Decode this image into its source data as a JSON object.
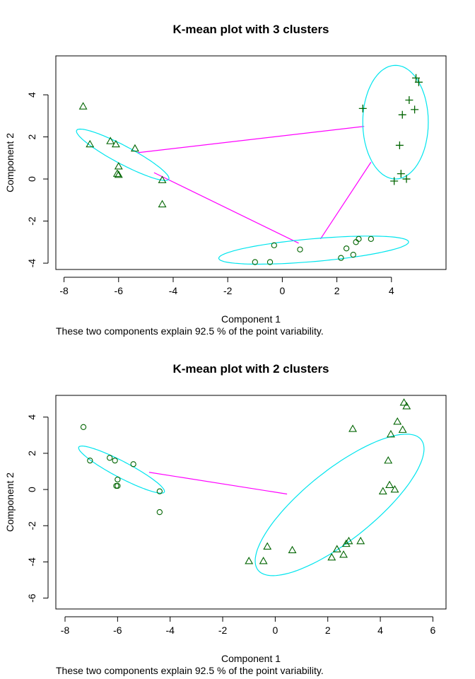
{
  "chart_data": [
    {
      "type": "scatter",
      "title": "K-mean plot with 3 clusters",
      "xlabel": "Component 1",
      "ylabel": "Component 2",
      "caption": "These two components explain 92.5 % of the point variability.",
      "xlim": [
        -8.3,
        6.0
      ],
      "ylim": [
        -4.3,
        5.85
      ],
      "xticks": [
        -8,
        -6,
        -4,
        -2,
        0,
        2,
        4
      ],
      "yticks": [
        -4,
        -2,
        0,
        2,
        4
      ],
      "grid": false,
      "colors": {
        "points": "#006400",
        "ellipse": "#00e5ee",
        "links": "#ff00ff"
      },
      "clusters": [
        {
          "marker": "triangle",
          "points": [
            [
              -7.3,
              3.45
            ],
            [
              -7.05,
              1.65
            ],
            [
              -6.3,
              1.8
            ],
            [
              -6.1,
              1.65
            ],
            [
              -6.0,
              0.6
            ],
            [
              -6.05,
              0.25
            ],
            [
              -6.0,
              0.2
            ],
            [
              -5.4,
              1.45
            ],
            [
              -4.4,
              -0.05
            ],
            [
              -4.4,
              -1.2
            ]
          ],
          "ellipse": {
            "cx": -5.85,
            "cy": 1.15,
            "rx": 2.05,
            "ry": 0.4,
            "angle": -35
          }
        },
        {
          "marker": "circle",
          "points": [
            [
              -1.0,
              -3.95
            ],
            [
              -0.45,
              -3.95
            ],
            [
              -0.3,
              -3.15
            ],
            [
              0.65,
              -3.35
            ],
            [
              2.15,
              -3.75
            ],
            [
              2.35,
              -3.3
            ],
            [
              2.6,
              -3.6
            ],
            [
              2.7,
              -3.0
            ],
            [
              2.8,
              -2.85
            ],
            [
              3.25,
              -2.85
            ]
          ],
          "ellipse": {
            "cx": 1.15,
            "cy": -3.38,
            "rx": 3.5,
            "ry": 0.54,
            "angle": 6.5
          }
        },
        {
          "marker": "plus",
          "points": [
            [
              2.95,
              3.35
            ],
            [
              4.1,
              -0.1
            ],
            [
              4.3,
              1.6
            ],
            [
              4.35,
              0.25
            ],
            [
              4.4,
              3.05
            ],
            [
              4.55,
              0.0
            ],
            [
              4.65,
              3.75
            ],
            [
              4.85,
              3.3
            ],
            [
              4.9,
              4.8
            ],
            [
              5.0,
              4.6
            ]
          ],
          "ellipse": {
            "cx": 4.15,
            "cy": 2.7,
            "rx": 1.2,
            "ry": 2.7,
            "angle": 0
          }
        }
      ],
      "links": [
        [
          [
            -5.3,
            1.25
          ],
          [
            3.0,
            2.5
          ]
        ],
        [
          [
            -4.7,
            0.3
          ],
          [
            0.6,
            -3.05
          ]
        ],
        [
          [
            1.4,
            -2.85
          ],
          [
            3.25,
            0.8
          ]
        ]
      ]
    },
    {
      "type": "scatter",
      "title": "K-mean plot with 2 clusters",
      "xlabel": "Component 1",
      "ylabel": "Component 2",
      "caption": "These two components explain 92.5 % of the point variability.",
      "xlim": [
        -8.35,
        6.5
      ],
      "ylim": [
        -6.6,
        5.2
      ],
      "xticks": [
        -8,
        -6,
        -4,
        -2,
        0,
        2,
        4,
        6
      ],
      "yticks": [
        -6,
        -4,
        -2,
        0,
        2,
        4
      ],
      "grid": false,
      "colors": {
        "points": "#006400",
        "ellipse": "#00e5ee",
        "links": "#ff00ff"
      },
      "clusters": [
        {
          "marker": "circle",
          "points": [
            [
              -7.3,
              3.45
            ],
            [
              -7.05,
              1.6
            ],
            [
              -6.3,
              1.75
            ],
            [
              -6.1,
              1.6
            ],
            [
              -6.0,
              0.55
            ],
            [
              -6.05,
              0.2
            ],
            [
              -6.0,
              0.2
            ],
            [
              -5.4,
              1.4
            ],
            [
              -4.4,
              -0.1
            ],
            [
              -4.4,
              -1.25
            ]
          ],
          "ellipse": {
            "cx": -5.85,
            "cy": 1.1,
            "rx": 2.05,
            "ry": 0.4,
            "angle": -38
          }
        },
        {
          "marker": "triangle",
          "points": [
            [
              -1.0,
              -3.95
            ],
            [
              -0.45,
              -3.95
            ],
            [
              -0.3,
              -3.15
            ],
            [
              0.65,
              -3.35
            ],
            [
              2.15,
              -3.75
            ],
            [
              2.35,
              -3.3
            ],
            [
              2.6,
              -3.6
            ],
            [
              2.7,
              -3.0
            ],
            [
              2.8,
              -2.85
            ],
            [
              3.25,
              -2.85
            ],
            [
              2.95,
              3.35
            ],
            [
              4.1,
              -0.1
            ],
            [
              4.3,
              1.6
            ],
            [
              4.35,
              0.25
            ],
            [
              4.4,
              3.05
            ],
            [
              4.55,
              0.0
            ],
            [
              4.65,
              3.75
            ],
            [
              4.85,
              3.3
            ],
            [
              4.9,
              4.8
            ],
            [
              5.0,
              4.6
            ]
          ],
          "ellipse": {
            "cx": 2.45,
            "cy": -0.85,
            "rx": 4.8,
            "ry": 1.6,
            "angle": 52
          }
        }
      ],
      "links": [
        [
          [
            -4.8,
            0.95
          ],
          [
            0.45,
            -0.25
          ]
        ]
      ]
    }
  ]
}
